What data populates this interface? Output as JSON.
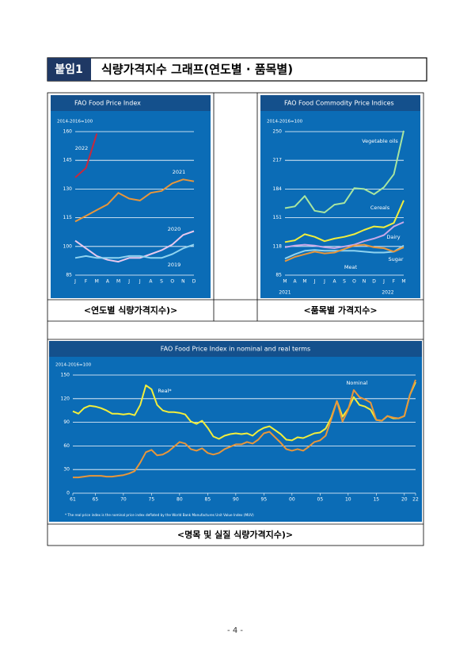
{
  "header": {
    "label": "붙임1",
    "title": "식량가격지수 그래프(연도별 · 품목별)"
  },
  "chart_data": [
    {
      "type": "line",
      "title": "FAO Food Price Index",
      "subtitle": "2014-2016=100",
      "categories": [
        "J",
        "F",
        "M",
        "A",
        "M",
        "J",
        "J",
        "A",
        "S",
        "O",
        "N",
        "D"
      ],
      "ylim": [
        85,
        160
      ],
      "yticks": [
        85,
        100,
        115,
        130,
        145,
        160
      ],
      "grid": true,
      "series": [
        {
          "name": "2022",
          "color": "#c8283c",
          "values": [
            136,
            141,
            159,
            null,
            null,
            null,
            null,
            null,
            null,
            null,
            null,
            null
          ]
        },
        {
          "name": "2021",
          "color": "#e8963a",
          "values": [
            113,
            116,
            119,
            122,
            128,
            125,
            124,
            128,
            129,
            133,
            135,
            134
          ]
        },
        {
          "name": "2020",
          "color": "#e8c8ee",
          "values": [
            103,
            99,
            95,
            93,
            92,
            94,
            94,
            96,
            98,
            101,
            106,
            108
          ]
        },
        {
          "name": "2019",
          "color": "#8fd3f0",
          "values": [
            94,
            95,
            94,
            94,
            94,
            95,
            95,
            94,
            94,
            96,
            99,
            101
          ]
        }
      ]
    },
    {
      "type": "line",
      "title": "FAO Food Commodity Price Indices",
      "subtitle": "2014-2016=100",
      "categories": [
        "M",
        "A",
        "M",
        "J",
        "J",
        "A",
        "S",
        "O",
        "N",
        "D",
        "J",
        "F",
        "M"
      ],
      "year_labels": [
        "2021",
        "2022"
      ],
      "ylim": [
        85,
        250
      ],
      "yticks": [
        85,
        118,
        151,
        184,
        217,
        250
      ],
      "grid": true,
      "series": [
        {
          "name": "Vegetable oils",
          "color": "#a8e6a0",
          "values": [
            162,
            164,
            176,
            159,
            157,
            166,
            168,
            185,
            184,
            178,
            186,
            201,
            251
          ]
        },
        {
          "name": "Cereals",
          "color": "#f2ee3c",
          "values": [
            123,
            125,
            132,
            129,
            124,
            127,
            129,
            132,
            137,
            141,
            140,
            145,
            171
          ]
        },
        {
          "name": "Dairy",
          "color": "#c8a8e8",
          "values": [
            117,
            119,
            120,
            119,
            117,
            116,
            118,
            120,
            124,
            127,
            131,
            141,
            146
          ]
        },
        {
          "name": "Meat",
          "color": "#8fd3f0",
          "values": [
            104,
            109,
            113,
            114,
            113,
            113,
            113,
            113,
            112,
            111,
            111,
            112,
            119
          ]
        },
        {
          "name": "Sugar",
          "color": "#e8963a",
          "values": [
            101,
            106,
            109,
            112,
            110,
            111,
            115,
            119,
            120,
            117,
            116,
            112,
            117
          ]
        }
      ]
    },
    {
      "type": "line",
      "title": "FAO Food Price Index in nominal and real terms",
      "subtitle": "2014-2016=100",
      "footnote": "* The real price index is the nominal price index deflated by the World Bank Manufactures Unit Value Index (MUV)",
      "x": [
        1961,
        1962,
        1963,
        1964,
        1965,
        1966,
        1967,
        1968,
        1969,
        1970,
        1971,
        1972,
        1973,
        1974,
        1975,
        1976,
        1977,
        1978,
        1979,
        1980,
        1981,
        1982,
        1983,
        1984,
        1985,
        1986,
        1987,
        1988,
        1989,
        1990,
        1991,
        1992,
        1993,
        1994,
        1995,
        1996,
        1997,
        1998,
        1999,
        2000,
        2001,
        2002,
        2003,
        2004,
        2005,
        2006,
        2007,
        2008,
        2009,
        2010,
        2011,
        2012,
        2013,
        2014,
        2015,
        2016,
        2017,
        2018,
        2019,
        2020,
        2021,
        2022
      ],
      "xlim": [
        1961,
        2022
      ],
      "xticks": [
        {
          "value": 1961,
          "label": "61"
        },
        {
          "value": 1965,
          "label": "65"
        },
        {
          "value": 1970,
          "label": "70"
        },
        {
          "value": 1975,
          "label": "75"
        },
        {
          "value": 1980,
          "label": "80"
        },
        {
          "value": 1985,
          "label": "85"
        },
        {
          "value": 1990,
          "label": "90"
        },
        {
          "value": 1995,
          "label": "95"
        },
        {
          "value": 2000,
          "label": "00"
        },
        {
          "value": 2005,
          "label": "05"
        },
        {
          "value": 2010,
          "label": "10"
        },
        {
          "value": 2015,
          "label": "15"
        },
        {
          "value": 2020,
          "label": "20"
        },
        {
          "value": 2022,
          "label": "22"
        }
      ],
      "ylim": [
        0,
        150
      ],
      "yticks": [
        0,
        30,
        60,
        90,
        120,
        150
      ],
      "grid": true,
      "series": [
        {
          "name": "Real*",
          "color": "#f2ee3c",
          "values": [
            104,
            101,
            108,
            111,
            110,
            108,
            105,
            101,
            101,
            100,
            101,
            99,
            112,
            137,
            132,
            112,
            105,
            103,
            103,
            102,
            100,
            91,
            88,
            92,
            83,
            72,
            69,
            73,
            75,
            76,
            75,
            76,
            73,
            79,
            83,
            85,
            80,
            75,
            68,
            67,
            71,
            70,
            73,
            76,
            77,
            82,
            96,
            117,
            97,
            107,
            122,
            112,
            110,
            106,
            93,
            92,
            98,
            95,
            95,
            98,
            125,
            141
          ]
        },
        {
          "name": "Nominal",
          "color": "#e8963a",
          "values": [
            20,
            20,
            21,
            22,
            22,
            22,
            21,
            21,
            22,
            23,
            25,
            28,
            39,
            52,
            55,
            48,
            49,
            53,
            59,
            65,
            63,
            56,
            54,
            57,
            51,
            49,
            51,
            56,
            59,
            62,
            62,
            65,
            63,
            68,
            76,
            78,
            71,
            64,
            56,
            54,
            56,
            54,
            59,
            65,
            67,
            73,
            94,
            117,
            91,
            106,
            131,
            122,
            119,
            115,
            93,
            92,
            98,
            96,
            95,
            98,
            125,
            144
          ]
        }
      ]
    }
  ],
  "captions": [
    "<연도별 식량가격지수)>",
    "<품목별 가격지수>",
    "<명목 및 실질 식량가격지수)>"
  ],
  "page_number": "- 4 -"
}
